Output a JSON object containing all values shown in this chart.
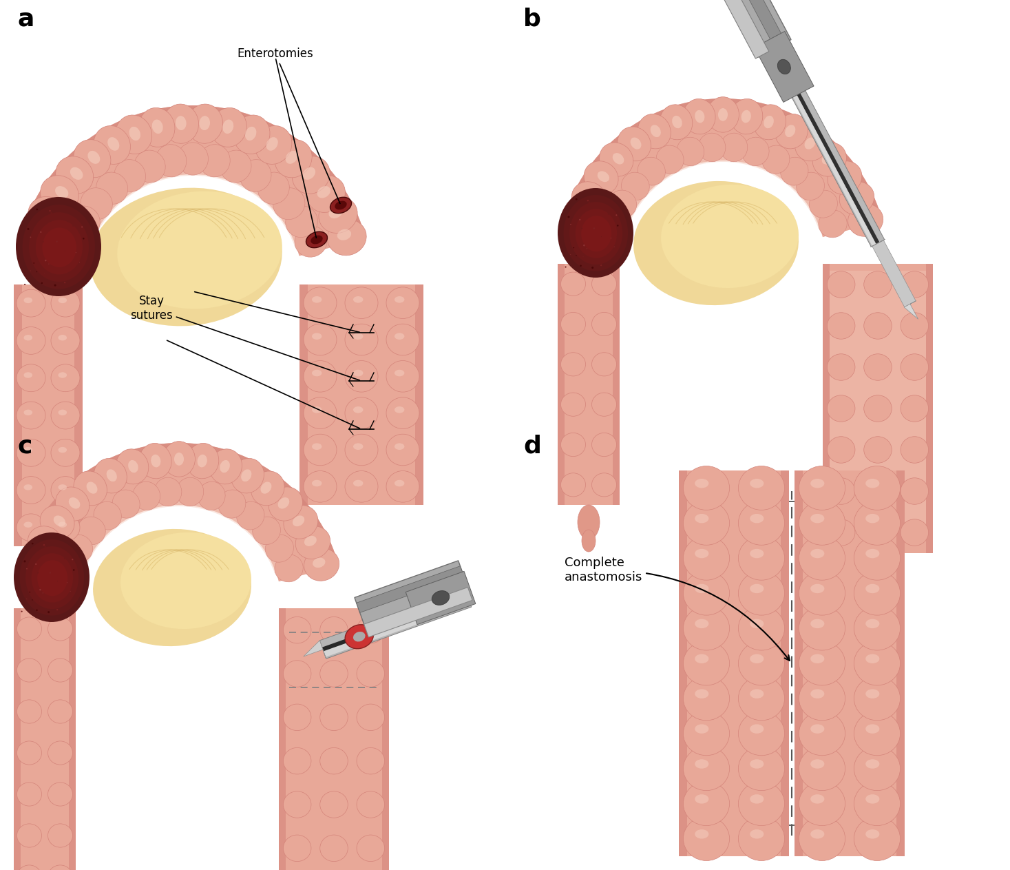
{
  "bg_color": "#ffffff",
  "ic": "#e8a898",
  "ic_dark": "#d4847a",
  "ic_highlight": "#f5cfc0",
  "ic_shadow": "#c87868",
  "cream": "#f0d898",
  "cream2": "#e8c878",
  "tumor": "#5a1818",
  "tumor2": "#7a2828",
  "instrument_main": "#b0b0b0",
  "instrument_dark": "#606060",
  "instrument_light": "#d8d8d8",
  "instrument_black": "#303030",
  "text_color": "#000000",
  "label_a": "a",
  "label_b": "b",
  "label_c": "c",
  "label_d": "d",
  "label_enterotomies": "Enterotomies",
  "label_stay": "Stay\nsutures",
  "label_complete": "Complete\nanastomosis",
  "fig_width": 14.67,
  "fig_height": 12.63
}
